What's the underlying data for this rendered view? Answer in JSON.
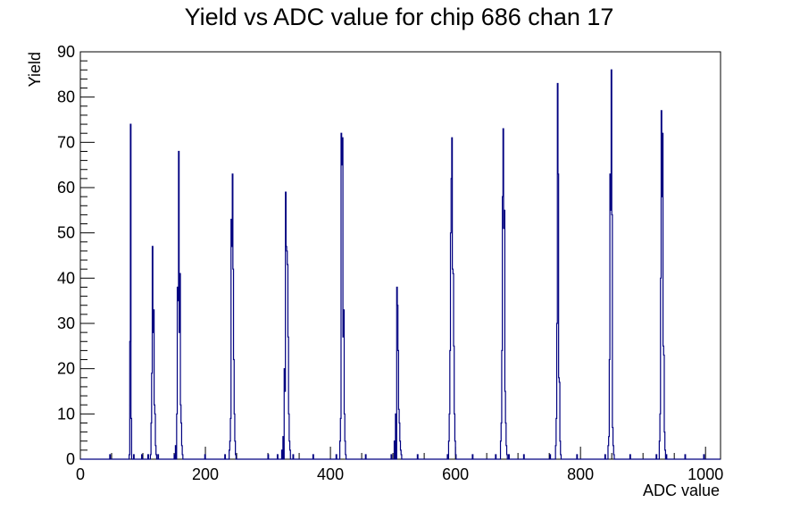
{
  "chart_data": {
    "type": "histogram",
    "title": "Yield vs ADC value for chip 686 chan 17",
    "xlabel": "ADC value",
    "ylabel": "Yield",
    "xlim": [
      0,
      1024
    ],
    "ylim": [
      0,
      90
    ],
    "x_ticks": [
      0,
      200,
      400,
      600,
      800,
      1000
    ],
    "y_ticks": [
      0,
      10,
      20,
      30,
      40,
      50,
      60,
      70,
      80,
      90
    ],
    "bin_width": 1,
    "line_color": "#000080",
    "grid": false,
    "bins": [
      {
        "x": 47,
        "y": 1
      },
      {
        "x": 78,
        "y": 1
      },
      {
        "x": 79,
        "y": 26
      },
      {
        "x": 80,
        "y": 74
      },
      {
        "x": 81,
        "y": 9
      },
      {
        "x": 85,
        "y": 1
      },
      {
        "x": 98,
        "y": 1
      },
      {
        "x": 108,
        "y": 1
      },
      {
        "x": 112,
        "y": 1
      },
      {
        "x": 113,
        "y": 8
      },
      {
        "x": 114,
        "y": 19
      },
      {
        "x": 115,
        "y": 47
      },
      {
        "x": 116,
        "y": 28
      },
      {
        "x": 117,
        "y": 33
      },
      {
        "x": 118,
        "y": 12
      },
      {
        "x": 119,
        "y": 10
      },
      {
        "x": 120,
        "y": 3
      },
      {
        "x": 121,
        "y": 1
      },
      {
        "x": 124,
        "y": 1
      },
      {
        "x": 150,
        "y": 1
      },
      {
        "x": 152,
        "y": 3
      },
      {
        "x": 154,
        "y": 10
      },
      {
        "x": 155,
        "y": 38
      },
      {
        "x": 156,
        "y": 35
      },
      {
        "x": 157,
        "y": 68
      },
      {
        "x": 158,
        "y": 28
      },
      {
        "x": 159,
        "y": 41
      },
      {
        "x": 160,
        "y": 12
      },
      {
        "x": 161,
        "y": 8
      },
      {
        "x": 162,
        "y": 3
      },
      {
        "x": 163,
        "y": 1
      },
      {
        "x": 199,
        "y": 1
      },
      {
        "x": 231,
        "y": 1
      },
      {
        "x": 238,
        "y": 2
      },
      {
        "x": 239,
        "y": 4
      },
      {
        "x": 240,
        "y": 9
      },
      {
        "x": 241,
        "y": 53
      },
      {
        "x": 242,
        "y": 47
      },
      {
        "x": 243,
        "y": 63
      },
      {
        "x": 244,
        "y": 42
      },
      {
        "x": 245,
        "y": 22
      },
      {
        "x": 246,
        "y": 10
      },
      {
        "x": 247,
        "y": 4
      },
      {
        "x": 248,
        "y": 1
      },
      {
        "x": 300,
        "y": 1
      },
      {
        "x": 315,
        "y": 1
      },
      {
        "x": 322,
        "y": 2
      },
      {
        "x": 324,
        "y": 5
      },
      {
        "x": 326,
        "y": 20
      },
      {
        "x": 327,
        "y": 15
      },
      {
        "x": 328,
        "y": 59
      },
      {
        "x": 329,
        "y": 47
      },
      {
        "x": 330,
        "y": 46
      },
      {
        "x": 331,
        "y": 43
      },
      {
        "x": 332,
        "y": 27
      },
      {
        "x": 333,
        "y": 10
      },
      {
        "x": 334,
        "y": 4
      },
      {
        "x": 335,
        "y": 2
      },
      {
        "x": 340,
        "y": 1
      },
      {
        "x": 372,
        "y": 1
      },
      {
        "x": 409,
        "y": 1
      },
      {
        "x": 415,
        "y": 4
      },
      {
        "x": 416,
        "y": 9
      },
      {
        "x": 417,
        "y": 72
      },
      {
        "x": 418,
        "y": 65
      },
      {
        "x": 419,
        "y": 71
      },
      {
        "x": 420,
        "y": 27
      },
      {
        "x": 421,
        "y": 33
      },
      {
        "x": 422,
        "y": 10
      },
      {
        "x": 423,
        "y": 4
      },
      {
        "x": 424,
        "y": 1
      },
      {
        "x": 456,
        "y": 1
      },
      {
        "x": 497,
        "y": 1
      },
      {
        "x": 502,
        "y": 4
      },
      {
        "x": 504,
        "y": 10
      },
      {
        "x": 506,
        "y": 38
      },
      {
        "x": 507,
        "y": 34
      },
      {
        "x": 508,
        "y": 24
      },
      {
        "x": 509,
        "y": 11
      },
      {
        "x": 510,
        "y": 8
      },
      {
        "x": 511,
        "y": 4
      },
      {
        "x": 512,
        "y": 2
      },
      {
        "x": 513,
        "y": 1
      },
      {
        "x": 539,
        "y": 1
      },
      {
        "x": 587,
        "y": 1
      },
      {
        "x": 589,
        "y": 4
      },
      {
        "x": 590,
        "y": 10
      },
      {
        "x": 591,
        "y": 24
      },
      {
        "x": 592,
        "y": 50
      },
      {
        "x": 593,
        "y": 62
      },
      {
        "x": 594,
        "y": 71
      },
      {
        "x": 595,
        "y": 42
      },
      {
        "x": 596,
        "y": 41
      },
      {
        "x": 597,
        "y": 25
      },
      {
        "x": 598,
        "y": 10
      },
      {
        "x": 599,
        "y": 4
      },
      {
        "x": 600,
        "y": 1
      },
      {
        "x": 627,
        "y": 1
      },
      {
        "x": 664,
        "y": 1
      },
      {
        "x": 672,
        "y": 4
      },
      {
        "x": 673,
        "y": 8
      },
      {
        "x": 674,
        "y": 24
      },
      {
        "x": 675,
        "y": 58
      },
      {
        "x": 676,
        "y": 73
      },
      {
        "x": 677,
        "y": 51
      },
      {
        "x": 678,
        "y": 55
      },
      {
        "x": 679,
        "y": 15
      },
      {
        "x": 680,
        "y": 8
      },
      {
        "x": 681,
        "y": 3
      },
      {
        "x": 682,
        "y": 1
      },
      {
        "x": 685,
        "y": 1
      },
      {
        "x": 709,
        "y": 1
      },
      {
        "x": 751,
        "y": 1
      },
      {
        "x": 760,
        "y": 3
      },
      {
        "x": 761,
        "y": 9
      },
      {
        "x": 762,
        "y": 30
      },
      {
        "x": 763,
        "y": 83
      },
      {
        "x": 764,
        "y": 63
      },
      {
        "x": 765,
        "y": 18
      },
      {
        "x": 766,
        "y": 17
      },
      {
        "x": 767,
        "y": 4
      },
      {
        "x": 768,
        "y": 1
      },
      {
        "x": 794,
        "y": 1
      },
      {
        "x": 839,
        "y": 1
      },
      {
        "x": 844,
        "y": 3
      },
      {
        "x": 845,
        "y": 5
      },
      {
        "x": 846,
        "y": 22
      },
      {
        "x": 847,
        "y": 63
      },
      {
        "x": 848,
        "y": 55
      },
      {
        "x": 849,
        "y": 86
      },
      {
        "x": 850,
        "y": 54
      },
      {
        "x": 851,
        "y": 7
      },
      {
        "x": 852,
        "y": 3
      },
      {
        "x": 853,
        "y": 1
      },
      {
        "x": 879,
        "y": 1
      },
      {
        "x": 921,
        "y": 1
      },
      {
        "x": 926,
        "y": 4
      },
      {
        "x": 927,
        "y": 10
      },
      {
        "x": 928,
        "y": 40
      },
      {
        "x": 929,
        "y": 77
      },
      {
        "x": 930,
        "y": 58
      },
      {
        "x": 931,
        "y": 72
      },
      {
        "x": 932,
        "y": 25
      },
      {
        "x": 933,
        "y": 23
      },
      {
        "x": 934,
        "y": 6
      },
      {
        "x": 935,
        "y": 2
      },
      {
        "x": 937,
        "y": 1
      },
      {
        "x": 967,
        "y": 1
      },
      {
        "x": 997,
        "y": 1
      }
    ]
  }
}
